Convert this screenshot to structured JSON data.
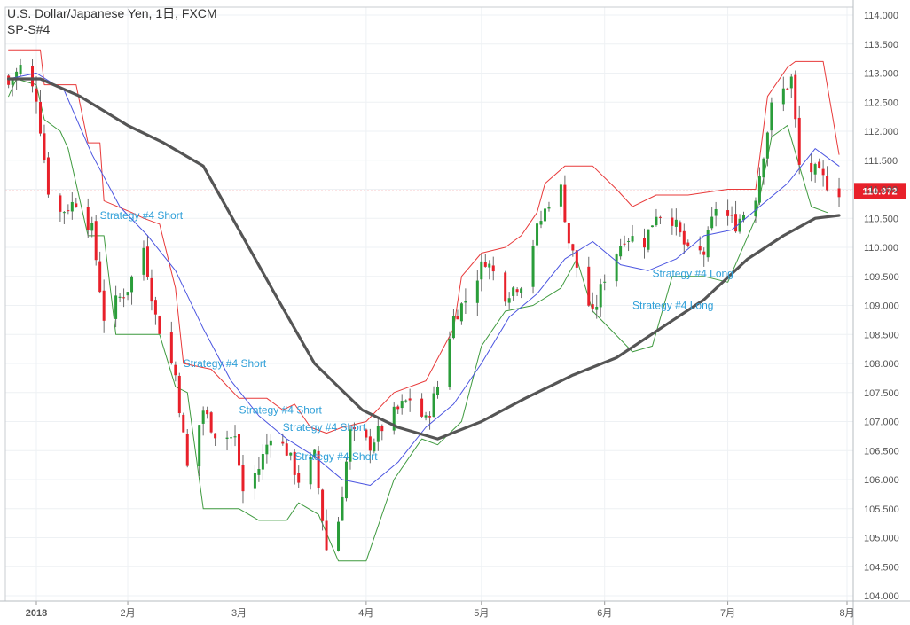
{
  "header": {
    "title": "U.S. Dollar/Japanese Yen, 1日, FXCM",
    "subtitle": "SP-S#4"
  },
  "colors": {
    "up": "#2a9d3a",
    "down": "#e8202a",
    "upper_band": "#e83a3a",
    "lower_band": "#3f9a3f",
    "fast_ma": "#4a54e0",
    "slow_ma": "#555555",
    "last_price": "#e8202a",
    "annotation": "#2e9fd8",
    "grid": "#eef1f4"
  },
  "chart_data": {
    "type": "candlestick",
    "symbol": "USDJPY",
    "timeframe": "1日",
    "source": "FXCM",
    "ylim": [
      103.9,
      114.1
    ],
    "y_ticks": [
      "114.000",
      "113.500",
      "113.000",
      "112.500",
      "112.000",
      "111.500",
      "111.000",
      "110.500",
      "110.000",
      "109.500",
      "109.000",
      "108.500",
      "108.000",
      "107.500",
      "107.000",
      "106.500",
      "106.000",
      "105.500",
      "105.000",
      "104.500",
      "104.000"
    ],
    "x_labels": [
      "2018",
      "2月",
      "3月",
      "4月",
      "5月",
      "6月",
      "7月",
      "8月"
    ],
    "last_price": "110.972",
    "close_path": [
      [
        "2018-01-02",
        112.8
      ],
      [
        "2018-01-05",
        113.1
      ],
      [
        "2018-01-09",
        112.6
      ],
      [
        "2018-01-12",
        111.0
      ],
      [
        "2018-01-15",
        110.6
      ],
      [
        "2018-01-19",
        110.8
      ],
      [
        "2018-01-23",
        110.3
      ],
      [
        "2018-01-26",
        108.8
      ],
      [
        "2018-02-01",
        109.3
      ],
      [
        "2018-02-05",
        110.0
      ],
      [
        "2018-02-08",
        108.8
      ],
      [
        "2018-02-13",
        107.8
      ],
      [
        "2018-02-16",
        106.2
      ],
      [
        "2018-02-20",
        107.2
      ],
      [
        "2018-02-23",
        106.8
      ],
      [
        "2018-02-28",
        106.7
      ],
      [
        "2018-03-02",
        105.8
      ],
      [
        "2018-03-06",
        106.2
      ],
      [
        "2018-03-09",
        106.8
      ],
      [
        "2018-03-13",
        106.5
      ],
      [
        "2018-03-16",
        106.0
      ],
      [
        "2018-03-20",
        106.4
      ],
      [
        "2018-03-23",
        104.8
      ],
      [
        "2018-03-26",
        105.3
      ],
      [
        "2018-03-29",
        106.8
      ],
      [
        "2018-04-03",
        106.6
      ],
      [
        "2018-04-06",
        106.9
      ],
      [
        "2018-04-10",
        107.2
      ],
      [
        "2018-04-13",
        107.4
      ],
      [
        "2018-04-17",
        107.0
      ],
      [
        "2018-04-20",
        107.6
      ],
      [
        "2018-04-24",
        108.8
      ],
      [
        "2018-04-27",
        109.1
      ],
      [
        "2018-05-02",
        109.8
      ],
      [
        "2018-05-07",
        109.2
      ],
      [
        "2018-05-11",
        109.4
      ],
      [
        "2018-05-15",
        110.3
      ],
      [
        "2018-05-18",
        110.8
      ],
      [
        "2018-05-21",
        111.0
      ],
      [
        "2018-05-23",
        110.1
      ],
      [
        "2018-05-29",
        108.8
      ],
      [
        "2018-06-01",
        109.5
      ],
      [
        "2018-06-06",
        110.2
      ],
      [
        "2018-06-11",
        110.1
      ],
      [
        "2018-06-14",
        110.6
      ],
      [
        "2018-06-18",
        110.5
      ],
      [
        "2018-06-22",
        109.9
      ],
      [
        "2018-06-26",
        109.9
      ],
      [
        "2018-06-29",
        110.7
      ],
      [
        "2018-07-04",
        110.4
      ],
      [
        "2018-07-09",
        110.9
      ],
      [
        "2018-07-13",
        112.4
      ],
      [
        "2018-07-18",
        112.9
      ],
      [
        "2018-07-20",
        111.4
      ],
      [
        "2018-07-24",
        111.3
      ],
      [
        "2018-07-27",
        111.1
      ]
    ],
    "series": [
      {
        "name": "upper band",
        "values": [
          [
            "2018-01-02",
            113.4
          ],
          [
            "2018-01-10",
            113.4
          ],
          [
            "2018-01-11",
            112.8
          ],
          [
            "2018-01-19",
            112.8
          ],
          [
            "2018-01-22",
            111.8
          ],
          [
            "2018-01-25",
            111.8
          ],
          [
            "2018-01-26",
            110.8
          ],
          [
            "2018-02-02",
            110.6
          ],
          [
            "2018-02-05",
            110.5
          ],
          [
            "2018-02-09",
            110.4
          ],
          [
            "2018-02-13",
            109.3
          ],
          [
            "2018-02-15",
            108.0
          ],
          [
            "2018-02-22",
            107.9
          ],
          [
            "2018-03-01",
            107.4
          ],
          [
            "2018-03-08",
            107.4
          ],
          [
            "2018-03-12",
            107.2
          ],
          [
            "2018-03-15",
            107.3
          ],
          [
            "2018-03-19",
            106.9
          ],
          [
            "2018-03-23",
            106.8
          ],
          [
            "2018-03-27",
            106.9
          ],
          [
            "2018-04-02",
            107.0
          ],
          [
            "2018-04-09",
            107.5
          ],
          [
            "2018-04-17",
            107.7
          ],
          [
            "2018-04-24",
            108.6
          ],
          [
            "2018-04-26",
            109.5
          ],
          [
            "2018-05-01",
            109.9
          ],
          [
            "2018-05-07",
            110.0
          ],
          [
            "2018-05-11",
            110.2
          ],
          [
            "2018-05-15",
            110.6
          ],
          [
            "2018-05-17",
            111.1
          ],
          [
            "2018-05-22",
            111.4
          ],
          [
            "2018-05-29",
            111.4
          ],
          [
            "2018-06-04",
            111.0
          ],
          [
            "2018-06-08",
            110.7
          ],
          [
            "2018-06-14",
            110.9
          ],
          [
            "2018-06-22",
            110.9
          ],
          [
            "2018-07-02",
            111.0
          ],
          [
            "2018-07-09",
            111.0
          ],
          [
            "2018-07-12",
            112.6
          ],
          [
            "2018-07-17",
            113.1
          ],
          [
            "2018-07-19",
            113.2
          ],
          [
            "2018-07-26",
            113.2
          ],
          [
            "2018-07-30",
            111.6
          ]
        ]
      },
      {
        "name": "lower band",
        "values": [
          [
            "2018-01-02",
            112.6
          ],
          [
            "2018-01-04",
            112.9
          ],
          [
            "2018-01-09",
            112.8
          ],
          [
            "2018-01-11",
            112.2
          ],
          [
            "2018-01-15",
            112.0
          ],
          [
            "2018-01-17",
            111.7
          ],
          [
            "2018-01-22",
            110.2
          ],
          [
            "2018-01-26",
            110.2
          ],
          [
            "2018-01-29",
            108.5
          ],
          [
            "2018-02-09",
            108.5
          ],
          [
            "2018-02-13",
            107.6
          ],
          [
            "2018-02-16",
            107.5
          ],
          [
            "2018-02-20",
            105.5
          ],
          [
            "2018-03-01",
            105.5
          ],
          [
            "2018-03-06",
            105.3
          ],
          [
            "2018-03-13",
            105.3
          ],
          [
            "2018-03-16",
            105.6
          ],
          [
            "2018-03-21",
            105.4
          ],
          [
            "2018-03-26",
            104.6
          ],
          [
            "2018-04-02",
            104.6
          ],
          [
            "2018-04-09",
            106.0
          ],
          [
            "2018-04-16",
            106.7
          ],
          [
            "2018-04-20",
            106.6
          ],
          [
            "2018-04-26",
            107.0
          ],
          [
            "2018-05-01",
            108.3
          ],
          [
            "2018-05-07",
            108.9
          ],
          [
            "2018-05-14",
            109.0
          ],
          [
            "2018-05-21",
            109.3
          ],
          [
            "2018-05-25",
            109.8
          ],
          [
            "2018-05-29",
            108.9
          ],
          [
            "2018-06-08",
            108.2
          ],
          [
            "2018-06-13",
            108.3
          ],
          [
            "2018-06-18",
            109.5
          ],
          [
            "2018-06-26",
            109.5
          ],
          [
            "2018-07-02",
            109.4
          ],
          [
            "2018-07-09",
            110.5
          ],
          [
            "2018-07-13",
            111.9
          ],
          [
            "2018-07-17",
            112.1
          ],
          [
            "2018-07-23",
            110.7
          ],
          [
            "2018-07-27",
            110.6
          ]
        ]
      },
      {
        "name": "fast MA",
        "values": [
          [
            "2018-01-02",
            112.9
          ],
          [
            "2018-01-09",
            113.0
          ],
          [
            "2018-01-16",
            112.7
          ],
          [
            "2018-01-23",
            111.6
          ],
          [
            "2018-01-30",
            110.7
          ],
          [
            "2018-02-06",
            110.2
          ],
          [
            "2018-02-13",
            109.6
          ],
          [
            "2018-02-20",
            108.6
          ],
          [
            "2018-02-27",
            107.7
          ],
          [
            "2018-03-06",
            107.1
          ],
          [
            "2018-03-13",
            106.7
          ],
          [
            "2018-03-20",
            106.4
          ],
          [
            "2018-03-27",
            106.0
          ],
          [
            "2018-04-03",
            105.9
          ],
          [
            "2018-04-10",
            106.3
          ],
          [
            "2018-04-17",
            106.9
          ],
          [
            "2018-04-24",
            107.3
          ],
          [
            "2018-05-01",
            108.0
          ],
          [
            "2018-05-08",
            108.8
          ],
          [
            "2018-05-15",
            109.2
          ],
          [
            "2018-05-22",
            109.8
          ],
          [
            "2018-05-29",
            110.1
          ],
          [
            "2018-06-05",
            109.7
          ],
          [
            "2018-06-12",
            109.6
          ],
          [
            "2018-06-19",
            109.8
          ],
          [
            "2018-06-26",
            110.2
          ],
          [
            "2018-07-03",
            110.3
          ],
          [
            "2018-07-10",
            110.7
          ],
          [
            "2018-07-17",
            111.1
          ],
          [
            "2018-07-24",
            111.7
          ],
          [
            "2018-07-30",
            111.4
          ]
        ]
      },
      {
        "name": "slow MA",
        "values": [
          [
            "2018-01-02",
            112.9
          ],
          [
            "2018-01-10",
            112.9
          ],
          [
            "2018-01-20",
            112.6
          ],
          [
            "2018-02-01",
            112.1
          ],
          [
            "2018-02-10",
            111.8
          ],
          [
            "2018-02-20",
            111.4
          ],
          [
            "2018-03-01",
            110.3
          ],
          [
            "2018-03-10",
            109.2
          ],
          [
            "2018-03-20",
            108.0
          ],
          [
            "2018-04-01",
            107.2
          ],
          [
            "2018-04-10",
            106.9
          ],
          [
            "2018-04-20",
            106.7
          ],
          [
            "2018-05-01",
            107.0
          ],
          [
            "2018-05-12",
            107.4
          ],
          [
            "2018-05-24",
            107.8
          ],
          [
            "2018-06-04",
            108.1
          ],
          [
            "2018-06-15",
            108.6
          ],
          [
            "2018-06-26",
            109.1
          ],
          [
            "2018-07-07",
            109.8
          ],
          [
            "2018-07-16",
            110.2
          ],
          [
            "2018-07-24",
            110.5
          ],
          [
            "2018-07-30",
            110.55
          ]
        ]
      }
    ],
    "annotations": [
      {
        "text": "Strategy #4 Short",
        "date": "2018-01-25",
        "price": 110.55
      },
      {
        "text": "Strategy #4 Short",
        "date": "2018-02-15",
        "price": 108.0
      },
      {
        "text": "Strategy #4 Short",
        "date": "2018-03-01",
        "price": 107.2
      },
      {
        "text": "Strategy #4 Short",
        "date": "2018-03-12",
        "price": 106.9
      },
      {
        "text": "Strategy #4 Short",
        "date": "2018-03-15",
        "price": 106.4
      },
      {
        "text": "Strategy #4 Long",
        "date": "2018-06-08",
        "price": 109.0
      },
      {
        "text": "Strategy #4 Long",
        "date": "2018-06-13",
        "price": 109.55
      }
    ]
  }
}
